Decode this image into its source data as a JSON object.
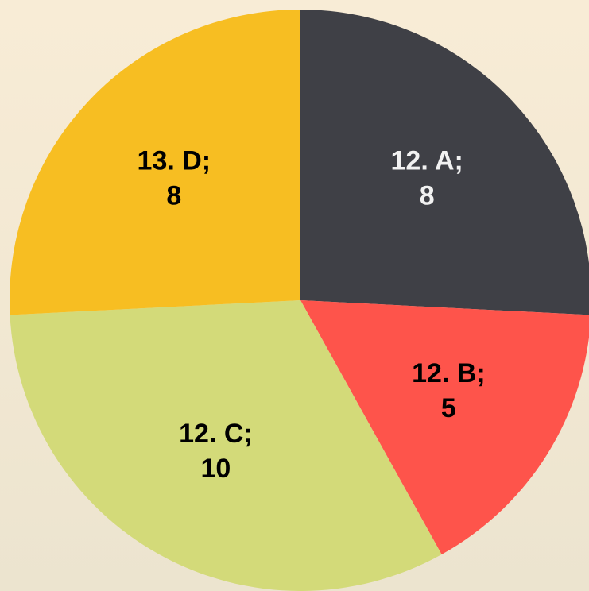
{
  "chart_data": {
    "type": "pie",
    "categories": [
      "12. A;",
      "12. B;",
      "12. C;",
      "13. D;"
    ],
    "values": [
      8,
      5,
      10,
      8
    ],
    "colors": [
      "#3f4046",
      "#fe544b",
      "#d3da79",
      "#f7be22"
    ],
    "label_colors": [
      "#f2f2f2",
      "#000000",
      "#000000",
      "#000000"
    ]
  }
}
